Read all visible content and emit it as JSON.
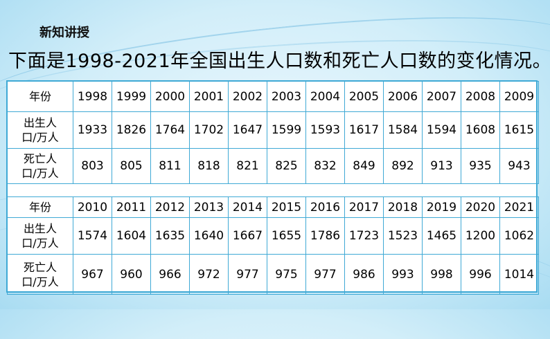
{
  "section_tag": "新知讲授",
  "heading": "下面是1998-2021年全国出生人口数和死亡人口数的变化情况。",
  "table1": {
    "year_label": "年份",
    "years": [
      "1998",
      "1999",
      "2000",
      "2001",
      "2002",
      "2003",
      "2004",
      "2005",
      "2006",
      "2007",
      "2008",
      "2009"
    ],
    "births_label_line1": "出生人",
    "births_label_line2": "口/万人",
    "births": [
      "1933",
      "1826",
      "1764",
      "1702",
      "1647",
      "1599",
      "1593",
      "1617",
      "1584",
      "1594",
      "1608",
      "1615"
    ],
    "deaths_label_line1": "死亡人",
    "deaths_label_line2": "口/万人",
    "deaths": [
      "803",
      "805",
      "811",
      "818",
      "821",
      "825",
      "832",
      "849",
      "892",
      "913",
      "935",
      "943"
    ]
  },
  "table2": {
    "year_label": "年份",
    "years": [
      "2010",
      "2011",
      "2012",
      "2013",
      "2014",
      "2015",
      "2016",
      "2017",
      "2018",
      "2019",
      "2020",
      "2021"
    ],
    "births_label_line1": "出生人",
    "births_label_line2": "口/万人",
    "births": [
      "1574",
      "1604",
      "1635",
      "1640",
      "1667",
      "1655",
      "1786",
      "1723",
      "1523",
      "1465",
      "1200",
      "1062"
    ],
    "deaths_label_line1": "死亡人",
    "deaths_label_line2": "口/万人",
    "deaths": [
      "967",
      "960",
      "966",
      "972",
      "977",
      "975",
      "977",
      "986",
      "993",
      "998",
      "996",
      "1014"
    ]
  },
  "colors": {
    "border": "#3fa9d5",
    "background": "#d2eef9"
  }
}
